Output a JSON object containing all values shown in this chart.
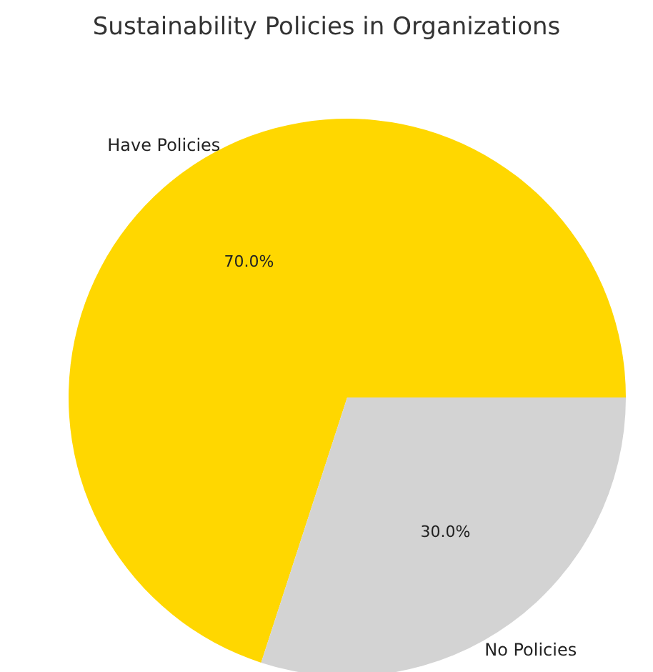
{
  "chart_data": {
    "type": "pie",
    "title": "Sustainability Policies in Organizations",
    "categories": [
      "Have Policies",
      "No Policies"
    ],
    "values": [
      70,
      30
    ],
    "colors": [
      "#ffd700",
      "#d3d3d3"
    ],
    "value_labels": [
      "70.0%",
      "30.0%"
    ]
  }
}
